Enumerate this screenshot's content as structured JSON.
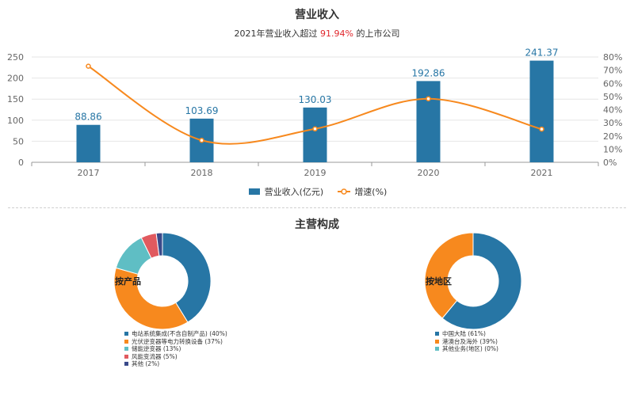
{
  "chart_data": [
    {
      "type": "bar",
      "title": "营业收入",
      "subtitle_prefix": "2021年营业收入超过",
      "subtitle_highlight": "91.94%",
      "subtitle_suffix": "的上市公司",
      "categories": [
        "2017",
        "2018",
        "2019",
        "2020",
        "2021"
      ],
      "series": [
        {
          "name": "营业收入(亿元)",
          "type": "bar",
          "axis": "left",
          "color": "#2776a5",
          "values": [
            88.86,
            103.69,
            130.03,
            192.86,
            241.37
          ],
          "labels": [
            "88.86",
            "103.69",
            "130.03",
            "192.86",
            "241.37"
          ]
        },
        {
          "name": "增速(%)",
          "type": "line",
          "axis": "right",
          "color": "#f7891e",
          "values": [
            73,
            16.7,
            25.4,
            48.3,
            25.2
          ]
        }
      ],
      "y_left": {
        "ticks": [
          "0",
          "50",
          "100",
          "150",
          "200",
          "250"
        ],
        "ylim": [
          0,
          250
        ]
      },
      "y_right": {
        "ticks": [
          "0%",
          "10%",
          "20%",
          "30%",
          "40%",
          "50%",
          "60%",
          "70%",
          "80%"
        ],
        "ylim": [
          0,
          80
        ]
      },
      "legend_position": "bottom"
    },
    {
      "type": "pie",
      "title": "主营构成",
      "center_label": "按产品",
      "slices": [
        {
          "label": "电站系统集成(不含自制产品) (40%)",
          "value": 40,
          "color": "#2776a5"
        },
        {
          "label": "光伏逆变器等电力转换设备 (37%)",
          "value": 37,
          "color": "#f7891e"
        },
        {
          "label": "储能逆变器 (13%)",
          "value": 13,
          "color": "#5fbec4"
        },
        {
          "label": "风能变流器 (5%)",
          "value": 5,
          "color": "#e05a5f"
        },
        {
          "label": "其他 (2%)",
          "value": 2,
          "color": "#3a4a8a"
        }
      ]
    },
    {
      "type": "pie",
      "center_label": "按地区",
      "slices": [
        {
          "label": "中国大陆 (61%)",
          "value": 61,
          "color": "#2776a5"
        },
        {
          "label": "港澳台及海外 (39%)",
          "value": 39,
          "color": "#f7891e"
        },
        {
          "label": "其他业务(地区) (0%)",
          "value": 0,
          "color": "#5fbec4"
        }
      ]
    }
  ]
}
